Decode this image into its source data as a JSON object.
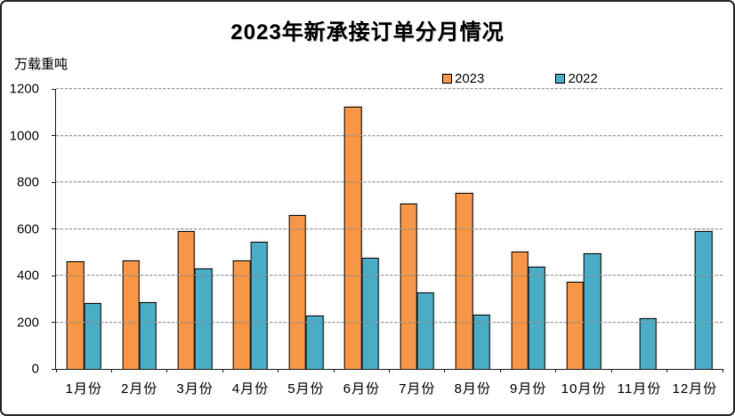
{
  "title": "2023年新承接订单分月情况",
  "y_axis": {
    "unit_label": "万载重吨",
    "ticks": [
      0,
      200,
      400,
      600,
      800,
      1000,
      1200
    ]
  },
  "legend": {
    "items": [
      {
        "label": "2023",
        "color": "#F79646"
      },
      {
        "label": "2022",
        "color": "#4BACC6"
      }
    ]
  },
  "chart_data": {
    "type": "bar",
    "title": "2023年新承接订单分月情况",
    "ylabel": "万载重吨",
    "ylim": [
      0,
      1200
    ],
    "yticks": [
      0,
      200,
      400,
      600,
      800,
      1000,
      1200
    ],
    "grid": true,
    "legend_position": "top",
    "categories": [
      "1月份",
      "2月份",
      "3月份",
      "4月份",
      "5月份",
      "6月份",
      "7月份",
      "8月份",
      "9月份",
      "10月份",
      "11月份",
      "12月份"
    ],
    "series": [
      {
        "name": "2023",
        "color": "#F79646",
        "values": [
          461,
          464,
          592,
          466,
          659,
          1125,
          708,
          754,
          502,
          372,
          null,
          null
        ]
      },
      {
        "name": "2022",
        "color": "#4BACC6",
        "values": [
          281,
          284,
          429,
          545,
          230,
          478,
          326,
          232,
          438,
          495,
          219,
          591
        ]
      }
    ]
  }
}
